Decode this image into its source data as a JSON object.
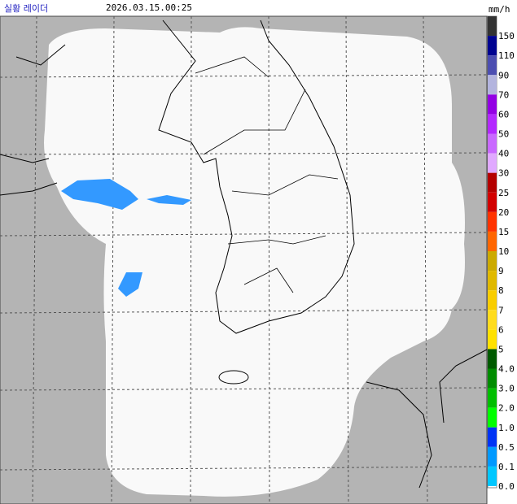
{
  "header": {
    "title": "실황 레이더",
    "time": "2026.03.15.00:25",
    "unit": "mm/h"
  },
  "legend": [
    {
      "label": "150",
      "color": "#333333"
    },
    {
      "label": "110",
      "color": "#000390"
    },
    {
      "label": "90",
      "color": "#4c4eb1"
    },
    {
      "label": "70",
      "color": "#b3b4de"
    },
    {
      "label": "60",
      "color": "#9300e4"
    },
    {
      "label": "50",
      "color": "#b329ff"
    },
    {
      "label": "40",
      "color": "#c969ff"
    },
    {
      "label": "30",
      "color": "#e0a9ff"
    },
    {
      "label": "25",
      "color": "#b40000"
    },
    {
      "label": "20",
      "color": "#d20000"
    },
    {
      "label": "15",
      "color": "#ff3300"
    },
    {
      "label": "10",
      "color": "#ff6600"
    },
    {
      "label": "9",
      "color": "#ccaa00"
    },
    {
      "label": "8",
      "color": "#e0b900"
    },
    {
      "label": "7",
      "color": "#f9cd00"
    },
    {
      "label": "6",
      "color": "#ffdc1f"
    },
    {
      "label": "5",
      "color": "#ffe100"
    },
    {
      "label": "4.0",
      "color": "#005a00"
    },
    {
      "label": "3.0",
      "color": "#008c00"
    },
    {
      "label": "2.0",
      "color": "#00be00"
    },
    {
      "label": "1.0",
      "color": "#00ff00"
    },
    {
      "label": "0.5",
      "color": "#0033f5"
    },
    {
      "label": "0.1",
      "color": "#0099ff"
    },
    {
      "label": "0.0",
      "color": "#00c7ff"
    }
  ]
}
